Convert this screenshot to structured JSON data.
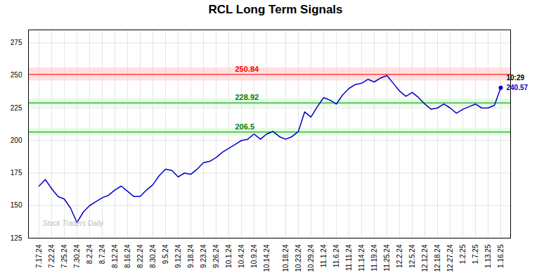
{
  "chart_data": {
    "type": "line",
    "title": "RCL Long Term Signals",
    "categories": [
      "7.17.24",
      null,
      "7.22.24",
      null,
      "7.25.24",
      null,
      "7.30.24",
      null,
      "8.2.24",
      null,
      "8.7.24",
      null,
      "8.12.24",
      null,
      "8.16.24",
      null,
      "8.22.24",
      null,
      "8.30.24",
      null,
      "9.5.24",
      null,
      "9.12.24",
      null,
      "9.18.24",
      null,
      "9.23.24",
      null,
      "9.26.24",
      null,
      "10.1.24",
      null,
      "10.4.24",
      null,
      "10.9.24",
      null,
      "10.14.24",
      null,
      null,
      "10.18.24",
      null,
      "10.23.24",
      null,
      "10.29.24",
      null,
      "11.1.24",
      null,
      "11.6.24",
      null,
      "11.11.24",
      null,
      "11.14.24",
      null,
      "11.19.24",
      null,
      "11.25.24",
      null,
      "12.2.24",
      null,
      "12.5.24",
      null,
      "12.12.24",
      null,
      "12.18.24",
      null,
      "12.27.24",
      null,
      "1.2.25",
      null,
      "1.7.25",
      null,
      "1.13.25",
      null,
      "1.16.25"
    ],
    "values": [
      165,
      170,
      163,
      157,
      155,
      148,
      137,
      145,
      150,
      153,
      156,
      158,
      162,
      165,
      161,
      157,
      157,
      162,
      166,
      173,
      178,
      177,
      172,
      175,
      174,
      178,
      183,
      184,
      187,
      191,
      194,
      197,
      200,
      201,
      205,
      201,
      205,
      207,
      203,
      201,
      203,
      207,
      222,
      218,
      226,
      233,
      231,
      228,
      235,
      240,
      243,
      244,
      247,
      245,
      248,
      250,
      244,
      238,
      234,
      237,
      233,
      228,
      224,
      225,
      228,
      225,
      221,
      224,
      226,
      228,
      225,
      225,
      227,
      240.57
    ],
    "color": "#0000cc",
    "ylim": [
      125,
      285
    ],
    "yticks": [
      125,
      150,
      175,
      200,
      225,
      250,
      275
    ],
    "grid": true,
    "reference_lines": [
      {
        "value": 250.84,
        "band": 5,
        "color": "red",
        "band_color": "#ffcccc"
      },
      {
        "value": 228.92,
        "band": 3,
        "color": "green",
        "band_color": "#ccffcc"
      },
      {
        "value": 206.5,
        "band": 3,
        "color": "green",
        "band_color": "#ccffcc"
      }
    ],
    "annotations": [
      {
        "text": "10:29",
        "color": "#000000"
      },
      {
        "text": "240.57",
        "color": "#0000cc"
      },
      {
        "text": "Stock Traders Daily",
        "color": "#bbbbbb"
      }
    ]
  }
}
